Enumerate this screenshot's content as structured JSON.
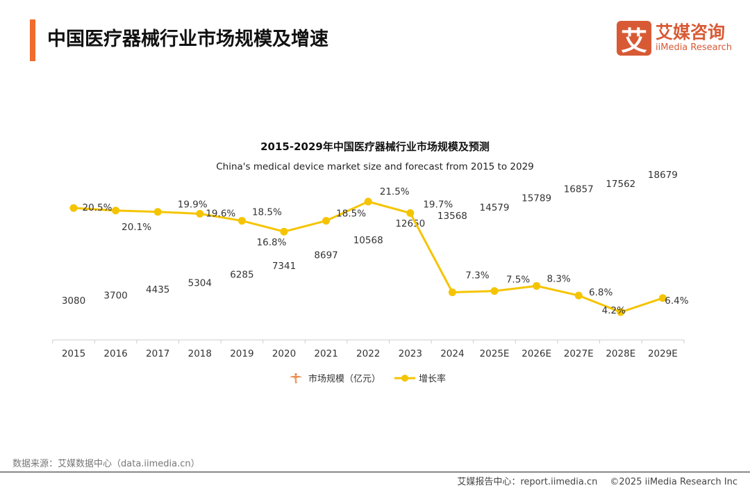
{
  "header": {
    "title": "中国医疗器械行业市场规模及增速",
    "logo_mark": "艾",
    "logo_cn": "艾媒咨询",
    "logo_en": "iiMedia Research"
  },
  "colors": {
    "accent": "#f06b2c",
    "icon": "#e8894a",
    "line": "#f5c400",
    "logo": "#d85a35"
  },
  "chart_data": {
    "type": "bar+line",
    "title": "2015-2029年中国医疗器械行业市场规模及预测",
    "subtitle": "China's medical device market size and forecast from 2015 to 2029",
    "categories": [
      "2015",
      "2016",
      "2017",
      "2018",
      "2019",
      "2020",
      "2021",
      "2022",
      "2023",
      "2024",
      "2025E",
      "2026E",
      "2027E",
      "2028E",
      "2029E"
    ],
    "series": [
      {
        "name": "市场规模（亿元）",
        "type": "pictorial-bar",
        "icon": "caduceus-icon",
        "values": [
          3080,
          3700,
          4435,
          5304,
          6285,
          7341,
          8697,
          10568,
          12650,
          13568,
          14579,
          15789,
          16857,
          17562,
          18679
        ],
        "labels": [
          "3080",
          "3700",
          "4435",
          "5304",
          "6285",
          "7341",
          "8697",
          "10568",
          "12650",
          "13568",
          "14579",
          "15789",
          "16857",
          "17562",
          "18679"
        ]
      },
      {
        "name": "增长率",
        "type": "line",
        "unit": "%",
        "values": [
          20.5,
          20.1,
          19.9,
          19.6,
          18.5,
          16.8,
          18.5,
          21.5,
          19.7,
          7.3,
          7.5,
          8.3,
          6.8,
          4.2,
          6.4
        ],
        "labels": [
          "20.5%",
          "20.1%",
          "19.9%",
          "19.6%",
          "18.5%",
          "16.8%",
          "18.5%",
          "21.5%",
          "19.7%",
          "7.3%",
          "7.5%",
          "8.3%",
          "6.8%",
          "4.2%",
          "6.4%"
        ]
      }
    ],
    "legend": "bottom",
    "grid": false
  },
  "source": "数据来源：艾媒数据中心（data.iimedia.cn）",
  "footer": {
    "report": "艾媒报告中心：report.iimedia.cn",
    "copyright": "©2025  iiMedia Research  Inc"
  }
}
